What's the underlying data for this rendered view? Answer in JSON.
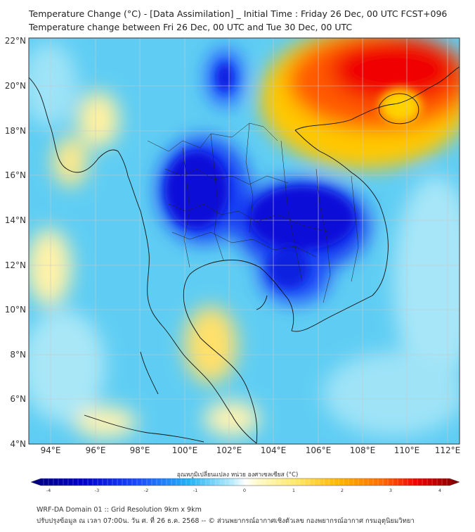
{
  "header": {
    "title_line1": "Temperature Change (°C) - [Data Assimilation] _ Initial Time : Friday 26 Dec, 00 UTC FCST+096",
    "title_line2": "Temperature change between Fri 26 Dec, 00 UTC and Tue 30 Dec, 00 UTC"
  },
  "map": {
    "lat_ticks": [
      "4°N",
      "6°N",
      "8°N",
      "10°N",
      "12°N",
      "14°N",
      "16°N",
      "18°N",
      "20°N",
      "22°N"
    ],
    "lon_ticks": [
      "94°E",
      "96°E",
      "98°E",
      "100°E",
      "102°E",
      "104°E",
      "106°E",
      "108°E",
      "110°E",
      "112°E"
    ]
  },
  "colorbar": {
    "label": "อุณหภูมิเปลี่ยนแปลง หน่วย องศาเซลเซียส (°C)",
    "ticks": [
      "-4",
      "-3",
      "-2",
      "-1",
      "0",
      "1",
      "2",
      "3",
      "4"
    ]
  },
  "footer": {
    "line1": "WRF-DA Domain 01 :: Grid Resolution 9km x 9km",
    "line2": "ปรับปรุงข้อมูล ณ เวลา 07:00น. วัน ศ. ที่ 26 ธ.ค. 2568 -- © ส่วนพยากรณ์อากาศเชิงตัวเลข กองพยากรณ์อากาศ กรมอุตุนิยมวิทยา"
  }
}
